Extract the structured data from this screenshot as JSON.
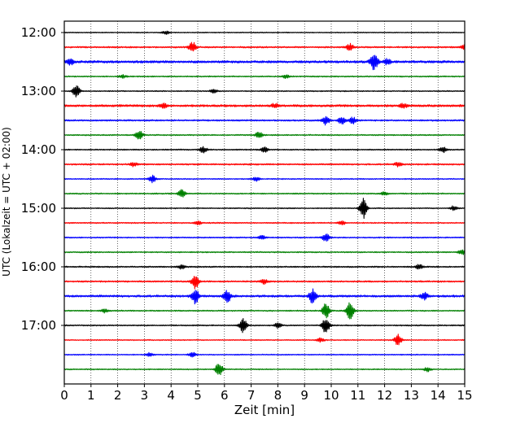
{
  "chart_data": {
    "type": "line",
    "title": "",
    "xlabel": "Zeit  [min]",
    "ylabel": "UTC (Lokalzeit = UTC + 02:00)",
    "xlim": [
      0,
      15
    ],
    "x_ticks": [
      "0",
      "1",
      "2",
      "3",
      "4",
      "5",
      "6",
      "7",
      "8",
      "9",
      "10",
      "11",
      "12",
      "13",
      "14",
      "15"
    ],
    "y_ticks": [
      "12:00",
      "13:00",
      "14:00",
      "15:00",
      "16:00",
      "17:00"
    ],
    "grid": "vertical dotted lines at each minute",
    "colors": [
      "#000000",
      "#ff0000",
      "#0000ff",
      "#008000"
    ],
    "series": [
      {
        "time": "12:00",
        "color": "#000000",
        "noise": 0.6,
        "events": [
          [
            3.8,
            2.0
          ]
        ]
      },
      {
        "time": "12:15",
        "color": "#ff0000",
        "noise": 1.0,
        "events": [
          [
            4.8,
            6.5
          ],
          [
            10.7,
            4.0
          ],
          [
            15.0,
            4.0
          ]
        ]
      },
      {
        "time": "12:30",
        "color": "#0000ff",
        "noise": 1.6,
        "events": [
          [
            0.2,
            4.0
          ],
          [
            11.6,
            11.0
          ],
          [
            12.1,
            3.0
          ]
        ]
      },
      {
        "time": "12:45",
        "color": "#008000",
        "noise": 0.8,
        "events": [
          [
            2.2,
            2.0
          ],
          [
            8.3,
            2.0
          ]
        ]
      },
      {
        "time": "13:00",
        "color": "#000000",
        "noise": 0.7,
        "events": [
          [
            0.45,
            8.0
          ],
          [
            5.6,
            2.5
          ]
        ]
      },
      {
        "time": "13:15",
        "color": "#ff0000",
        "noise": 1.5,
        "events": [
          [
            3.7,
            3.0
          ],
          [
            7.9,
            2.5
          ],
          [
            12.7,
            2.5
          ]
        ]
      },
      {
        "time": "13:30",
        "color": "#0000ff",
        "noise": 1.0,
        "events": [
          [
            9.8,
            5.0
          ],
          [
            10.4,
            5.0
          ],
          [
            10.8,
            4.0
          ]
        ]
      },
      {
        "time": "13:45",
        "color": "#008000",
        "noise": 0.8,
        "events": [
          [
            2.8,
            5.5
          ],
          [
            7.3,
            4.0
          ]
        ]
      },
      {
        "time": "14:00",
        "color": "#000000",
        "noise": 0.8,
        "events": [
          [
            5.2,
            3.5
          ],
          [
            7.5,
            3.0
          ],
          [
            14.2,
            3.5
          ]
        ]
      },
      {
        "time": "14:15",
        "color": "#ff0000",
        "noise": 1.0,
        "events": [
          [
            2.6,
            2.5
          ],
          [
            12.5,
            2.5
          ]
        ]
      },
      {
        "time": "14:30",
        "color": "#0000ff",
        "noise": 0.7,
        "events": [
          [
            3.3,
            4.5
          ],
          [
            7.2,
            2.5
          ]
        ]
      },
      {
        "time": "14:45",
        "color": "#008000",
        "noise": 0.8,
        "events": [
          [
            4.4,
            4.5
          ],
          [
            12.0,
            2.5
          ]
        ]
      },
      {
        "time": "15:00",
        "color": "#000000",
        "noise": 0.7,
        "events": [
          [
            11.2,
            13.0
          ],
          [
            14.6,
            3.0
          ]
        ]
      },
      {
        "time": "15:15",
        "color": "#ff0000",
        "noise": 0.8,
        "events": [
          [
            5.0,
            2.5
          ],
          [
            10.4,
            2.5
          ]
        ]
      },
      {
        "time": "15:30",
        "color": "#0000ff",
        "noise": 0.8,
        "events": [
          [
            7.4,
            2.5
          ],
          [
            9.8,
            5.0
          ]
        ]
      },
      {
        "time": "15:45",
        "color": "#008000",
        "noise": 0.8,
        "events": [
          [
            14.9,
            3.0
          ]
        ]
      },
      {
        "time": "16:00",
        "color": "#000000",
        "noise": 0.9,
        "events": [
          [
            4.4,
            2.5
          ],
          [
            13.3,
            3.0
          ]
        ]
      },
      {
        "time": "16:15",
        "color": "#ff0000",
        "noise": 1.0,
        "events": [
          [
            4.9,
            9.0
          ],
          [
            7.5,
            3.0
          ]
        ]
      },
      {
        "time": "16:30",
        "color": "#0000ff",
        "noise": 1.4,
        "events": [
          [
            4.9,
            9.0
          ],
          [
            6.1,
            8.0
          ],
          [
            9.3,
            8.5
          ],
          [
            13.5,
            4.0
          ]
        ]
      },
      {
        "time": "16:45",
        "color": "#008000",
        "noise": 0.8,
        "events": [
          [
            9.8,
            9.0
          ],
          [
            10.7,
            11.0
          ],
          [
            1.5,
            2.5
          ]
        ]
      },
      {
        "time": "17:00",
        "color": "#000000",
        "noise": 0.8,
        "events": [
          [
            6.7,
            9.0
          ],
          [
            9.8,
            10.0
          ],
          [
            8.0,
            3.0
          ]
        ]
      },
      {
        "time": "17:15",
        "color": "#ff0000",
        "noise": 0.7,
        "events": [
          [
            12.5,
            7.0
          ],
          [
            9.6,
            2.5
          ]
        ]
      },
      {
        "time": "17:30",
        "color": "#0000ff",
        "noise": 0.7,
        "events": [
          [
            4.8,
            3.5
          ],
          [
            3.2,
            2.5
          ]
        ]
      },
      {
        "time": "17:45",
        "color": "#008000",
        "noise": 0.7,
        "events": [
          [
            5.8,
            8.5
          ],
          [
            13.6,
            2.5
          ]
        ]
      }
    ]
  }
}
